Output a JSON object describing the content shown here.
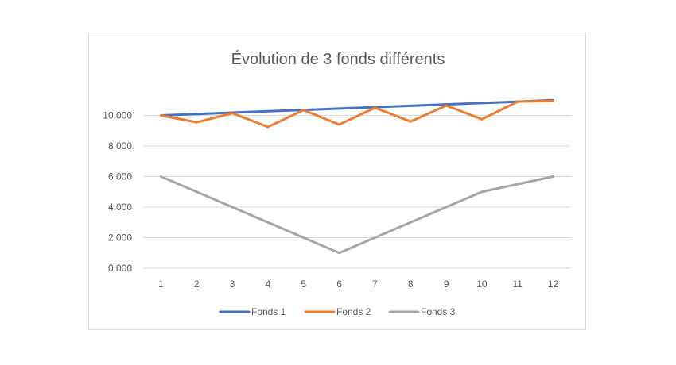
{
  "chart_data": {
    "type": "line",
    "title": "Évolution de 3 fonds différents",
    "xlabel": "",
    "ylabel": "",
    "categories": [
      "1",
      "2",
      "3",
      "4",
      "5",
      "6",
      "7",
      "8",
      "9",
      "10",
      "11",
      "12"
    ],
    "y_ticks": [
      "0.000",
      "2.000",
      "4.000",
      "6.000",
      "8.000",
      "10.000"
    ],
    "ylim": [
      0,
      12
    ],
    "grid": true,
    "legend_position": "bottom",
    "series": [
      {
        "name": "Fonds 1",
        "color": "#4472C4",
        "values": [
          10.0,
          10.09,
          10.18,
          10.27,
          10.36,
          10.45,
          10.54,
          10.63,
          10.72,
          10.81,
          10.9,
          11.0
        ]
      },
      {
        "name": "Fonds 2",
        "color": "#ED7D31",
        "values": [
          10.0,
          9.55,
          10.15,
          9.25,
          10.35,
          9.4,
          10.5,
          9.6,
          10.65,
          9.75,
          10.9,
          10.95
        ]
      },
      {
        "name": "Fonds 3",
        "color": "#A5A5A5",
        "values": [
          6.0,
          5.0,
          4.0,
          3.0,
          2.0,
          1.0,
          2.0,
          3.0,
          4.0,
          5.0,
          5.5,
          6.0
        ]
      }
    ]
  }
}
